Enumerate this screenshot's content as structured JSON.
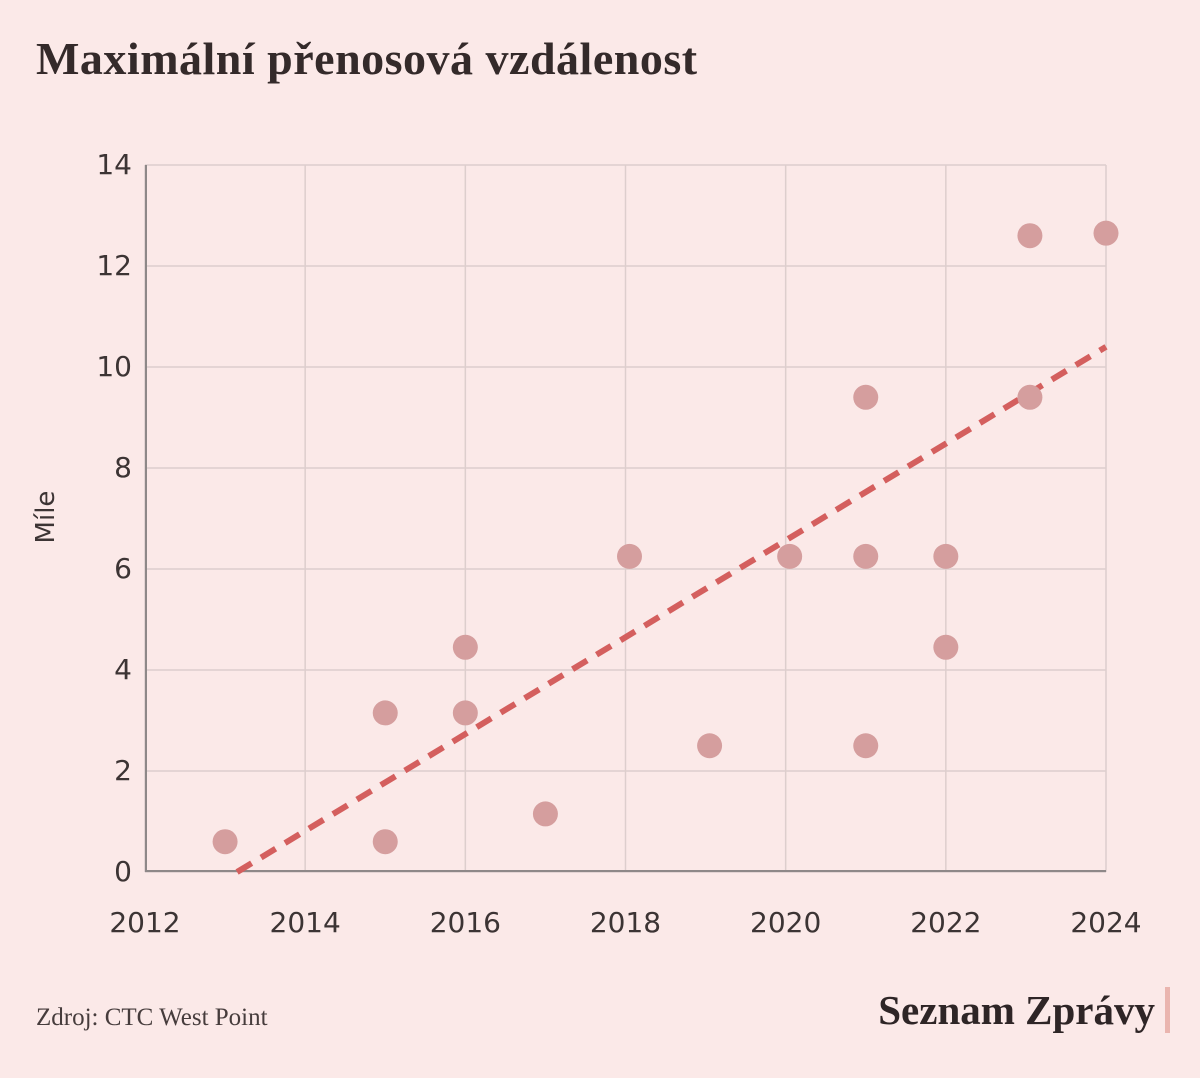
{
  "page": {
    "title": "Maximální přenosová vzdálenost",
    "source": "Zdroj: CTC West Point",
    "brand": "Seznam Zprávy"
  },
  "chart_data": {
    "type": "scatter",
    "title": "Maximální přenosová vzdálenost",
    "xlabel": "",
    "ylabel": "Míle",
    "xlim": [
      2012,
      2024
    ],
    "ylim": [
      0,
      14
    ],
    "xticks": [
      2012,
      2014,
      2016,
      2018,
      2020,
      2022,
      2024
    ],
    "yticks": [
      0,
      2,
      4,
      6,
      8,
      10,
      12,
      14
    ],
    "grid": true,
    "legend_position": "none",
    "points": [
      {
        "x": 2013.0,
        "y": 0.6
      },
      {
        "x": 2015.0,
        "y": 0.6
      },
      {
        "x": 2015.0,
        "y": 3.15
      },
      {
        "x": 2016.0,
        "y": 3.15
      },
      {
        "x": 2016.0,
        "y": 4.45
      },
      {
        "x": 2017.0,
        "y": 1.15
      },
      {
        "x": 2018.05,
        "y": 6.25
      },
      {
        "x": 2019.05,
        "y": 2.5
      },
      {
        "x": 2020.05,
        "y": 6.25
      },
      {
        "x": 2021.0,
        "y": 2.5
      },
      {
        "x": 2021.0,
        "y": 6.25
      },
      {
        "x": 2021.0,
        "y": 9.4
      },
      {
        "x": 2022.0,
        "y": 4.45
      },
      {
        "x": 2022.0,
        "y": 6.25
      },
      {
        "x": 2023.05,
        "y": 9.4
      },
      {
        "x": 2023.05,
        "y": 12.6
      },
      {
        "x": 2024.0,
        "y": 12.65
      }
    ],
    "trendline": {
      "x1": 2013.15,
      "y1": 0,
      "x2": 2024,
      "y2": 10.4,
      "style": "dashed"
    },
    "colors": {
      "background": "#fbe9e8",
      "grid": "#ddcecd",
      "axis": "#8e8888",
      "point": "#d59e9e",
      "trend": "#d45f5e",
      "text": "#3c3434",
      "title_text": "#342a2a",
      "brand_bar": "#eab5af"
    }
  }
}
